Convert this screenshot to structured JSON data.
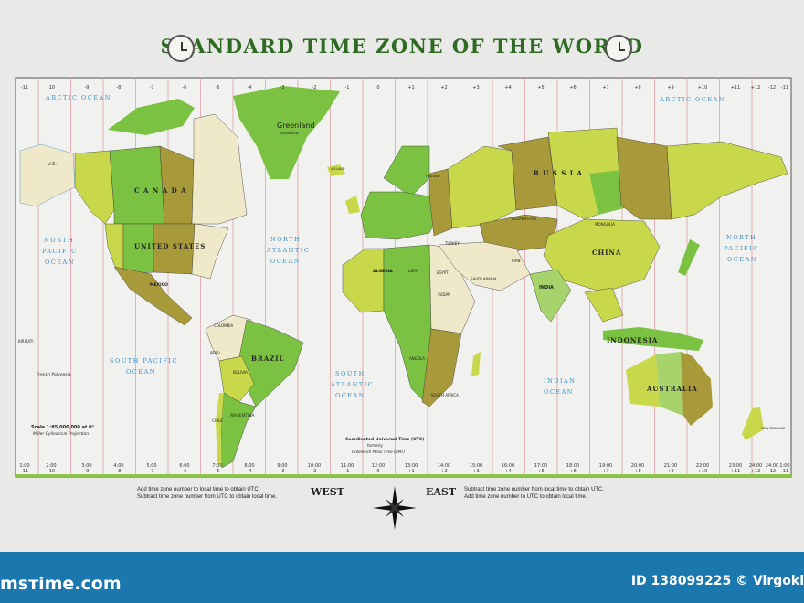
{
  "title": "STANDARD TIME ZONE OF THE WORLD",
  "colors": {
    "title": "#2f6a22",
    "green": "#7cc242",
    "yellow_green": "#c9d84a",
    "olive": "#a89a3a",
    "pale": "#efe8c9",
    "light_green": "#a6d36c",
    "zone_line": "#e3a0a8",
    "ocean_text": "#3a8fc0",
    "footer": "#1a78ae"
  },
  "icons": {
    "clock": "clock-icon",
    "compass": "compass-rose-icon"
  },
  "top_zones": [
    "-11",
    "-10",
    "-9",
    "-8",
    "-7",
    "-6",
    "-5",
    "-4",
    "-3",
    "-2",
    "-1",
    "0",
    "+1",
    "+2",
    "+3",
    "+4",
    "+5",
    "+6",
    "+7",
    "+8",
    "+9",
    "+10",
    "+11",
    "+12",
    "-12",
    "-11"
  ],
  "bottom_times": [
    "1:00",
    "2:00",
    "3:00",
    "4:00",
    "5:00",
    "6:00",
    "7:00",
    "8:00",
    "9:00",
    "10:00",
    "11:00",
    "12:00",
    "13:00",
    "14:00",
    "15:00",
    "16:00",
    "17:00",
    "18:00",
    "19:00",
    "20:00",
    "21:00",
    "22:00",
    "23:00",
    "24:00",
    "24:00",
    "1:00"
  ],
  "oceans": {
    "arctic_w": "ARCTIC OCEAN",
    "arctic_e": "ARCTIC OCEAN",
    "npac_w": [
      "NORTH",
      "PACIFIC",
      "OCEAN"
    ],
    "npac_e": [
      "NORTH",
      "PACIFIC",
      "OCEAN"
    ],
    "natl": [
      "NORTH",
      "ATLANTIC",
      "OCEAN"
    ],
    "spac": [
      "SOUTH PACIFIC",
      "OCEAN"
    ],
    "satl": [
      "SOUTH",
      "ATLANTIC",
      "OCEAN"
    ],
    "indian": [
      "INDIAN",
      "OCEAN"
    ]
  },
  "countries": {
    "greenland": "Greenland",
    "greenland_sub": "(DENMARK)",
    "canada": "C A N A D A",
    "us": "UNITED STATES",
    "alaska": "U.S.",
    "mexico": "MEXICO",
    "colombia": "COLOMBIA",
    "peru": "PERU",
    "brazil": "BRAZIL",
    "bolivia": "BOLIVIA",
    "argentina": "ARGENTINA",
    "chile": "CHILE",
    "russia": "R U S S I A",
    "china": "CHINA",
    "mongolia": "MONGOLIA",
    "kazakhstan": "KAZAKHSTAN",
    "iran": "IRAN",
    "turkey": "TURKEY",
    "india": "INDIA",
    "saudi": "SAUDI ARABIA",
    "algeria": "ALGERIA",
    "libya": "LIBYA",
    "egypt": "EGYPT",
    "sudan": "SUDAN",
    "angola": "ANGOLA",
    "south_africa": "SOUTH AFRICA",
    "indonesia": "INDONESIA",
    "australia": "AUSTRALIA",
    "new_zealand": "NEW ZEALAND",
    "kiribati": "KIRIBATI",
    "french_polynesia": "French Polynesia",
    "iceland": "ICELAND",
    "finland": "FINLAND"
  },
  "scale": {
    "line1": "Scale 1:85,000,000 at 0°",
    "line2": "Miller Cylindrical Projection"
  },
  "utc": {
    "line1": "Coordinated Universal Time (UTC)",
    "line2": "formerly",
    "line3": "Greenwich Mean Time (GMT)"
  },
  "notes": {
    "west_1": "Add time zone number to local time to obtain UTC.",
    "west_2": "Subtract time zone number from UTC to obtain local time.",
    "east_1": "Subtract time zone number from local time to obtain UTC.",
    "east_2": "Add time zone number to UTC to obtain local time.",
    "west": "WEST",
    "east": "EAST"
  },
  "footer": {
    "brand": "msтime.com",
    "id": "ID 138099225 © Virgoki"
  }
}
